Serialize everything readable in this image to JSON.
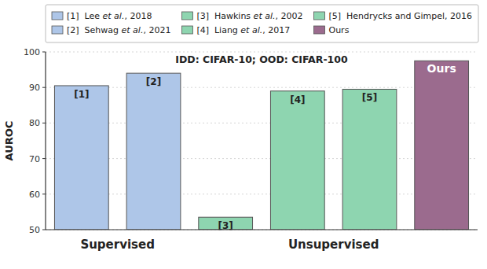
{
  "chart_data": {
    "type": "bar",
    "title": "IDD: CIFAR-10; OOD: CIFAR-100",
    "ylabel": "AUROC",
    "categories": [
      "[1]",
      "[2]",
      "[3]",
      "[4]",
      "[5]",
      "Ours"
    ],
    "values": [
      90.5,
      94.0,
      53.5,
      89.0,
      89.5,
      97.5
    ],
    "colors": [
      "#aec6e8",
      "#aec6e8",
      "#8ed5b0",
      "#8ed5b0",
      "#8ed5b0",
      "#9b6b8e"
    ],
    "groups": [
      "Supervised",
      "Supervised",
      "Unsupervised",
      "Unsupervised",
      "Unsupervised",
      "Unsupervised"
    ],
    "legend_entries": [
      "[1]  Lee et al., 2018",
      "[2]  Sehwag et al., 2021",
      "[3]  Hawkins et al., 2002",
      "[4]  Liang et al., 2017",
      "[5]  Hendrycks and Gimpel, 2016",
      "Ours"
    ],
    "legend": "top",
    "ylim": [
      50,
      100
    ],
    "yticks": [
      50,
      60,
      70,
      80,
      90,
      100
    ],
    "grid": true,
    "tick_labels": "y"
  }
}
